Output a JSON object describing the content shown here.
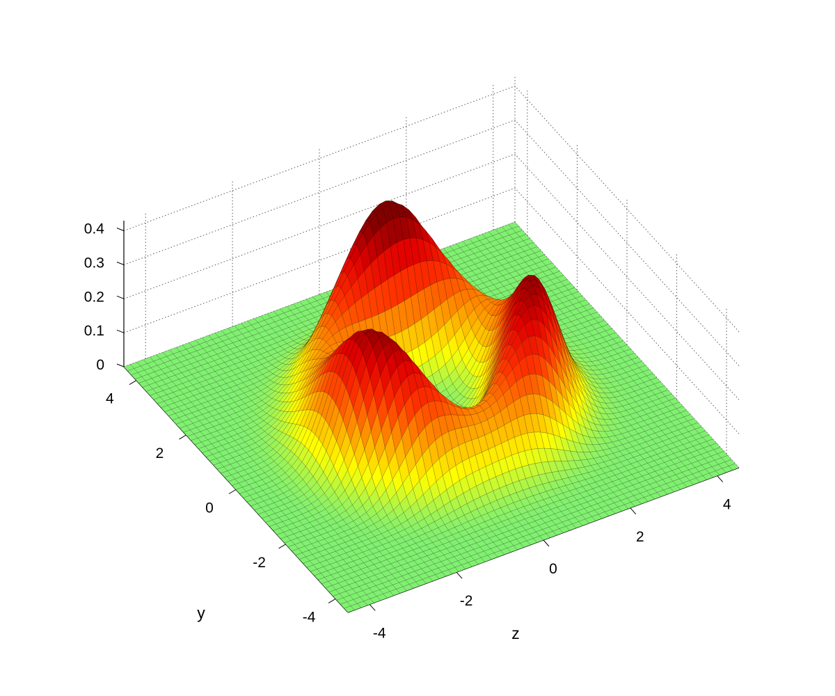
{
  "chart_data": {
    "type": "surface",
    "title": "",
    "xlabel": "z",
    "ylabel": "y",
    "zlabel": "",
    "x_ticks": [
      "-4",
      "-2",
      "0",
      "2",
      "4"
    ],
    "y_ticks": [
      "-4",
      "-2",
      "0",
      "2",
      "4"
    ],
    "z_ticks": [
      "0",
      "0.1",
      "0.2",
      "0.3",
      "0.4"
    ],
    "xlim": [
      -4.5,
      4.5
    ],
    "ylim": [
      -4.5,
      4.5
    ],
    "zlim": [
      0,
      0.43
    ],
    "grid": true,
    "colormap": [
      "#80f070",
      "#ffff00",
      "#ff9900",
      "#ff3300",
      "#e00000",
      "#800000"
    ],
    "surface": {
      "description_formula": "ring of radius 2 with height modulated by angle",
      "ring_radius": 2.0,
      "ring_width": 0.8,
      "base_height": 0.3,
      "modulation": 0.11,
      "lobes": 3,
      "grid_points": 60
    },
    "peaks": [
      {
        "x": 0.2,
        "y": 2.2,
        "z": 0.41
      },
      {
        "x": -2.0,
        "y": -0.4,
        "z": 0.35
      },
      {
        "x": 2.0,
        "y": -0.6,
        "z": 0.35
      },
      {
        "x": -0.2,
        "y": -1.8,
        "z": 0.3
      }
    ]
  }
}
